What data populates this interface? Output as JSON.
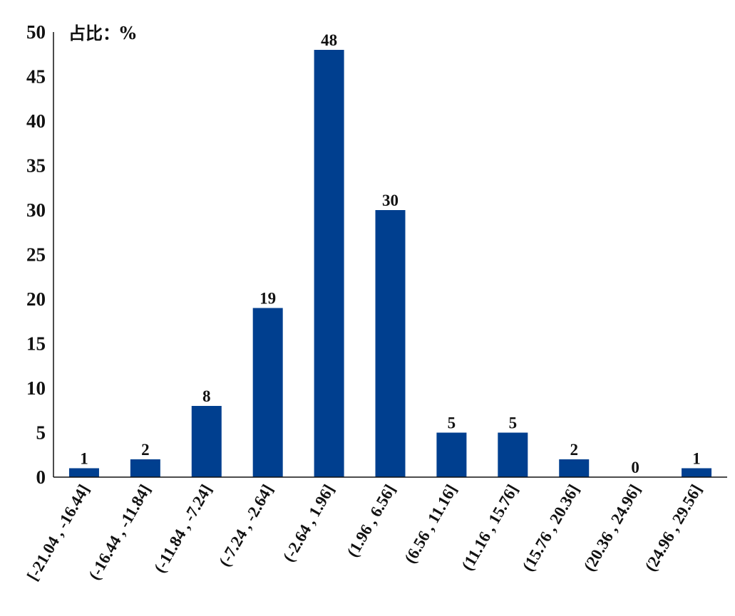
{
  "chart_data": {
    "type": "bar",
    "title": "",
    "unit_label": "占比：%",
    "xlabel": "",
    "ylabel": "",
    "categories": [
      "[-21.04 , -16.44]",
      "(-16.44 , -11.84]",
      "(-11.84 , -7.24]",
      "(-7.24 , -2.64]",
      "(-2.64 , 1.96]",
      "(1.96 , 6.56]",
      "(6.56 , 11.16]",
      "(11.16 , 15.76]",
      "(15.76 , 20.36]",
      "(20.36 , 24.96]",
      "(24.96 , 29.56]"
    ],
    "values": [
      1,
      2,
      8,
      19,
      48,
      30,
      5,
      5,
      2,
      0,
      1
    ],
    "ylim": [
      0,
      50
    ],
    "yticks": [
      0,
      5,
      10,
      15,
      20,
      25,
      30,
      35,
      40,
      45,
      50
    ],
    "grid": false,
    "legend": "none",
    "bar_color": "#003f8f",
    "axis_color": "#111111"
  }
}
